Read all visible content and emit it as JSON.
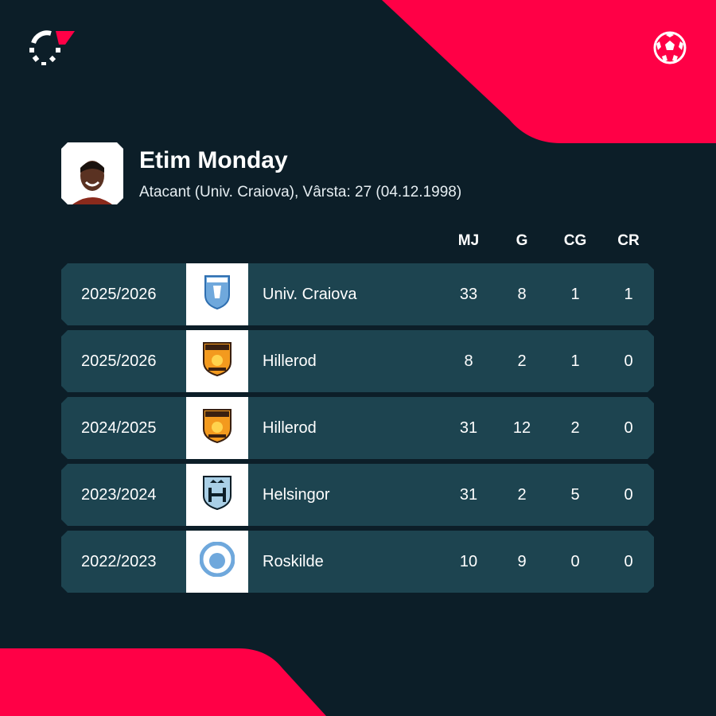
{
  "colors": {
    "background": "#0c1e28",
    "accent": "#ff0046",
    "row": "#1d4450"
  },
  "icons": {
    "brand": "flashscore-logo-icon",
    "sport": "football-icon"
  },
  "player": {
    "name": "Etim Monday",
    "subtitle": "Atacant (Univ. Craiova), Vârsta: 27 (04.12.1998)"
  },
  "headers": {
    "mj": "MJ",
    "g": "G",
    "cg": "CG",
    "cr": "CR"
  },
  "rows": [
    {
      "season": "2025/2026",
      "club": "Univ. Craiova",
      "crest": "univ-craiova-crest-icon",
      "mj": "33",
      "g": "8",
      "cg": "1",
      "cr": "1"
    },
    {
      "season": "2025/2026",
      "club": "Hillerod",
      "crest": "hillerod-crest-icon",
      "mj": "8",
      "g": "2",
      "cg": "1",
      "cr": "0"
    },
    {
      "season": "2024/2025",
      "club": "Hillerod",
      "crest": "hillerod-crest-icon",
      "mj": "31",
      "g": "12",
      "cg": "2",
      "cr": "0"
    },
    {
      "season": "2023/2024",
      "club": "Helsingor",
      "crest": "helsingor-crest-icon",
      "mj": "31",
      "g": "2",
      "cg": "5",
      "cr": "0"
    },
    {
      "season": "2022/2023",
      "club": "Roskilde",
      "crest": "roskilde-crest-icon",
      "mj": "10",
      "g": "9",
      "cg": "0",
      "cr": "0"
    }
  ]
}
